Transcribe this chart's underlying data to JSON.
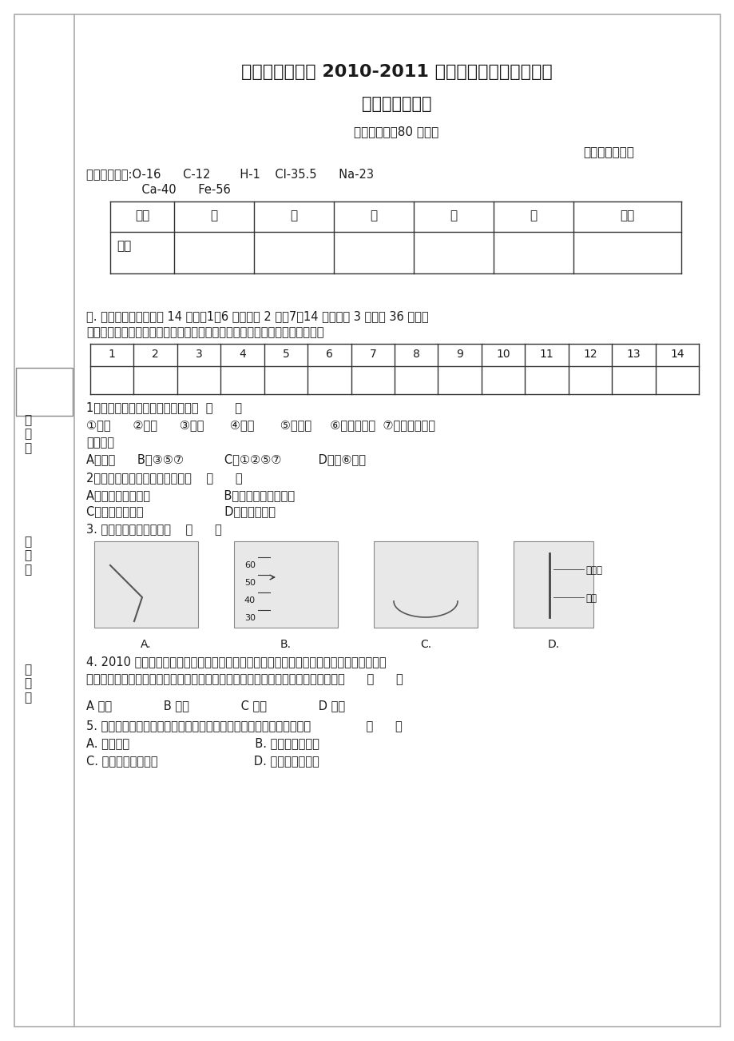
{
  "title1": "潮阳区河溪中学 2010-2011 学年度第一学期期末考试",
  "title2": "九年级化学试卷",
  "subtitle": "（考试时间：80 分钟）",
  "author": "出题人：吴和武",
  "atomic_mass_line1": "相对原子质量:O-16      C-12        H-1    Cl-35.5      Na-23",
  "atomic_mass_line2": "               Ca-40      Fe-56",
  "table1_headers": [
    "题次",
    "一",
    "二",
    "三",
    "四",
    "五",
    "总分"
  ],
  "table1_row": "得分",
  "section1_title_line1": "一. 选择题（本大题包括 14 小题，1～6 小题每题 2 分，7～14 小题每题 3 分。共 36 分。在",
  "section1_title_line2": "每小题列出的四个选项中，只有一个是正确的。请将所选的选项写在下表。）",
  "table2_headers": [
    "1",
    "2",
    "3",
    "4",
    "5",
    "6",
    "7",
    "8",
    "9",
    "10",
    "11",
    "12",
    "13",
    "14"
  ],
  "q1_line1": "1、下列变化一定属于化学变化的是  （      ）",
  "q1_line2": "①变色      ②发光      ③燃烧       ④爆炸       ⑤铁生锈     ⑥工业制氧气  ⑦大理石浮雕被",
  "q1_line3": "酸雨腐蚀",
  "q1_choices": "A、全部      B、③⑤⑦           C、①②⑤⑦          D、除⑥以外",
  "q2_line1": "2、下列物质属于氧化物的一组是    （      ）",
  "q2_line2": "A、大理石、生石灰                    B、干冰、四氧化三铁",
  "q2_line3": "C、空气、天然气                      D、甲烷、酒精",
  "q3_line1": "3. 下列实验操作正确的是    （      ）",
  "q3_labels": [
    "A.",
    "B.",
    "C.",
    "D."
  ],
  "thermo_marks": [
    "60",
    "50",
    "40",
    "30"
  ],
  "side_label_top": "稀盐酸",
  "side_label_bot": "镁条",
  "q4_line1": "4. 2010 年，全国食品安全整顿工作办公室对奶粉进行抽样检测，经检测发现某品牌奶粉中",
  "q4_line2": "蛋白质、钙、磷、锌、铁等的含量严重不足，营养价值比米汤还差。这里的钙指的是      （      ）",
  "q4_choices": "A 原子              B 元素              C 分子              D 单质",
  "q5_line1": "5. 当你走进鲜花盛开的花园时，常能闻到怡人的花香，这一现象说明了               （      ）",
  "q5_line2": "A. 分子很大                                  B. 分子分裂成原子",
  "q5_line3": "C. 分子在不断地运动                          D. 分子之间有间隔",
  "left_labels": [
    "班\n级\n：",
    "姓\n名\n：",
    "座\n号\n："
  ],
  "bg_color": "#ffffff",
  "text_color": "#1a1a1a",
  "line_color": "#333333"
}
